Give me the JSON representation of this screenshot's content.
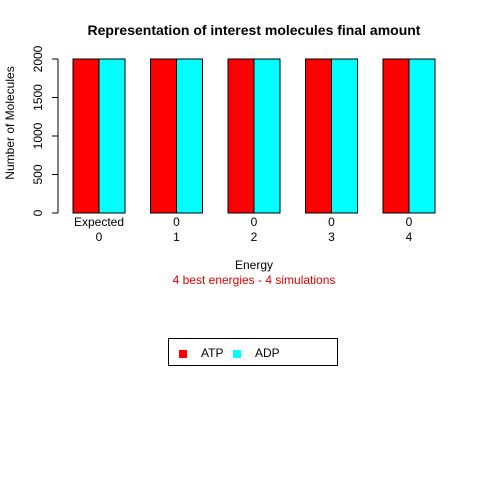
{
  "chart_data": {
    "type": "bar",
    "title": "Representation of interest molecules final amount",
    "ylabel": "Number of Molecules",
    "xlabel": "Energy",
    "subtitle": "4 best energies - 4 simulations",
    "subtitle_color": "#e00000",
    "ylim": [
      0,
      2000
    ],
    "yticks": [
      0,
      500,
      1000,
      1500,
      2000
    ],
    "groups": [
      {
        "top_label": "Expected",
        "bottom_label": "0"
      },
      {
        "top_label": "0",
        "bottom_label": "1"
      },
      {
        "top_label": "0",
        "bottom_label": "2"
      },
      {
        "top_label": "0",
        "bottom_label": "3"
      },
      {
        "top_label": "0",
        "bottom_label": "4"
      }
    ],
    "series": [
      {
        "name": "ATP",
        "color": "#ff0000",
        "values": [
          2000,
          2000,
          2000,
          2000,
          2000
        ]
      },
      {
        "name": "ADP",
        "color": "#00ffff",
        "values": [
          2000,
          2000,
          2000,
          2000,
          2000
        ]
      }
    ],
    "grid": false,
    "legend_position": "bottom-center"
  }
}
